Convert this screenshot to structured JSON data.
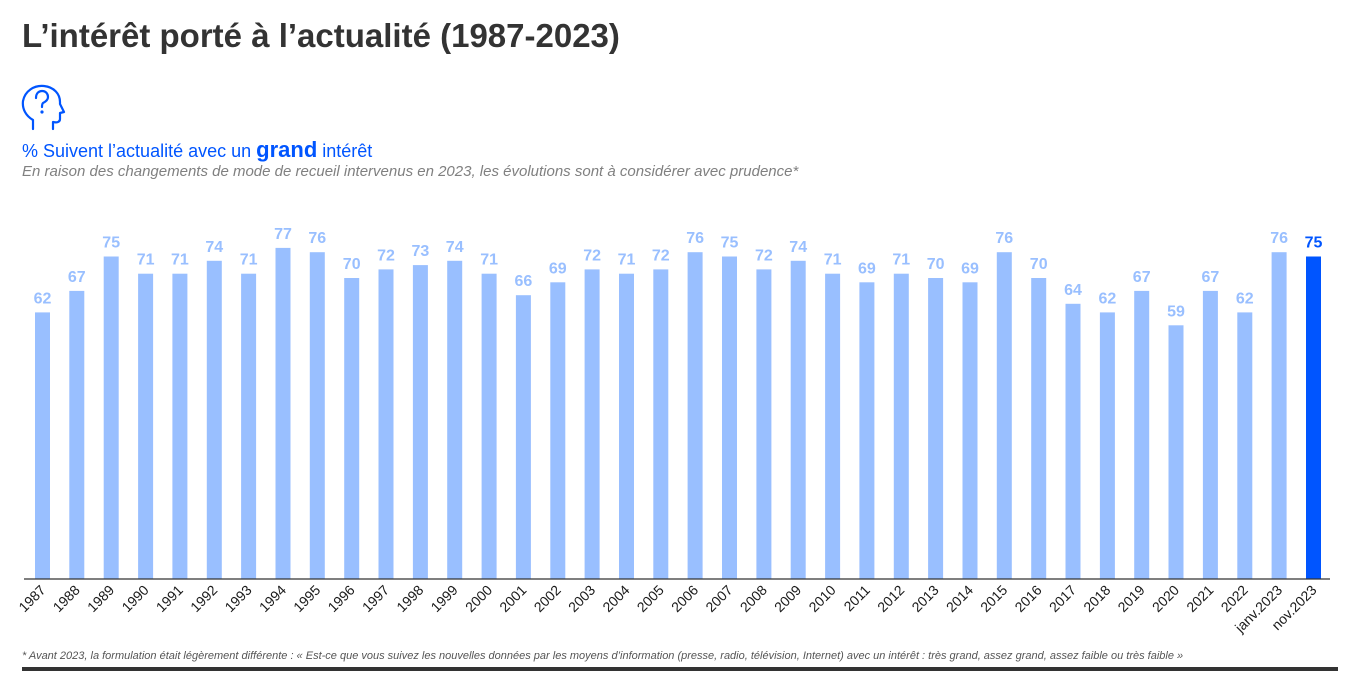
{
  "header": {
    "title": "L’intérêt porté à l’actualité (1987-2023)",
    "subtitle_prefix": "% Suivent l’actualité avec un ",
    "subtitle_emphasis": "grand",
    "subtitle_suffix": " intérêt",
    "note": "En raison des changements de mode de recueil intervenus en 2023, les évolutions sont à considérer avec prudence*"
  },
  "icon": "head-question-icon",
  "footer": {
    "footnote": "* Avant 2023, la formulation était légèrement différente :  « Est-ce que vous suivez les nouvelles données par les moyens d’information (presse, radio, télévision, Internet) avec un intérêt : très grand, assez grand, assez faible ou très faible »"
  },
  "colors": {
    "bar": "#99bfff",
    "highlight_bar": "#0055ff",
    "label": "#99bfff",
    "highlight_label": "#0055ff",
    "title": "#333333",
    "accent": "#0055ff"
  },
  "chart_data": {
    "type": "bar",
    "title": "",
    "xlabel": "",
    "ylabel": "",
    "ylim": [
      0,
      100
    ],
    "grid": false,
    "data_labels": true,
    "categories": [
      "1987",
      "1988",
      "1989",
      "1990",
      "1991",
      "1992",
      "1993",
      "1994",
      "1995",
      "1996",
      "1997",
      "1998",
      "1999",
      "2000",
      "2001",
      "2002",
      "2003",
      "2004",
      "2005",
      "2006",
      "2007",
      "2008",
      "2009",
      "2010",
      "2011",
      "2012",
      "2013",
      "2014",
      "2015",
      "2016",
      "2017",
      "2018",
      "2019",
      "2020",
      "2021",
      "2022",
      "janv.2023",
      "nov.2023"
    ],
    "values": [
      62,
      67,
      75,
      71,
      71,
      74,
      71,
      77,
      76,
      70,
      72,
      73,
      74,
      71,
      66,
      69,
      72,
      71,
      72,
      76,
      75,
      72,
      74,
      71,
      69,
      71,
      70,
      69,
      76,
      70,
      64,
      62,
      67,
      59,
      67,
      62,
      76,
      75
    ],
    "highlight_category": "nov.2023"
  }
}
